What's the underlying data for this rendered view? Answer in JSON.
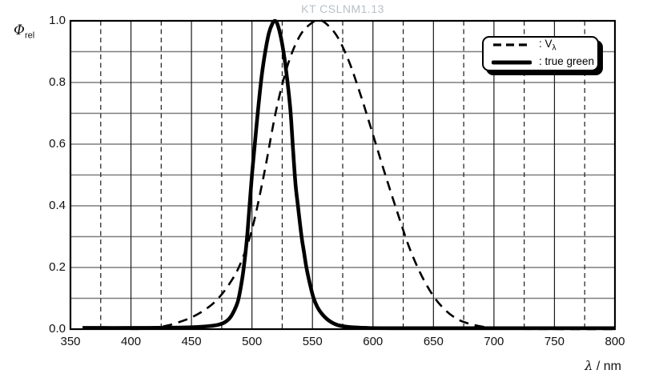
{
  "title": "KT CSLNM1.13",
  "axes": {
    "y_symbol": "Φ",
    "y_symbol_sub": "rel",
    "x_symbol": "λ",
    "x_unit": " / nm"
  },
  "legend": {
    "position": "top-right",
    "entries": [
      {
        "label_main": ": V",
        "label_sub": "λ",
        "line_style": "dashed"
      },
      {
        "label_main": ": true green",
        "label_sub": "",
        "line_style": "solid"
      }
    ]
  },
  "chart_data": {
    "type": "line",
    "title": "KT CSLNM1.13",
    "xlabel": "λ / nm",
    "ylabel": "Φrel",
    "xlim": [
      350,
      800
    ],
    "ylim": [
      0.0,
      1.0
    ],
    "grid": true,
    "x_ticks": [
      350,
      400,
      450,
      500,
      550,
      600,
      650,
      700,
      750,
      800
    ],
    "y_ticks": [
      "0.0",
      "0.2",
      "0.4",
      "0.6",
      "0.8",
      "1.0"
    ],
    "x_minor_gridlines": [
      375,
      425,
      475,
      525,
      575,
      625,
      675,
      725,
      775
    ],
    "y_minor_gridlines": [
      0.1,
      0.3,
      0.5,
      0.7,
      0.9
    ],
    "legend_position": "top-right",
    "series": [
      {
        "name": "Vλ",
        "line": "dashed",
        "points": [
          [
            400,
            0.0004
          ],
          [
            410,
            0.0012
          ],
          [
            420,
            0.004
          ],
          [
            430,
            0.0116
          ],
          [
            440,
            0.023
          ],
          [
            450,
            0.038
          ],
          [
            460,
            0.06
          ],
          [
            470,
            0.091
          ],
          [
            480,
            0.139
          ],
          [
            490,
            0.208
          ],
          [
            500,
            0.323
          ],
          [
            510,
            0.503
          ],
          [
            520,
            0.71
          ],
          [
            530,
            0.862
          ],
          [
            540,
            0.954
          ],
          [
            550,
            0.995
          ],
          [
            555,
            1.0
          ],
          [
            560,
            0.995
          ],
          [
            570,
            0.952
          ],
          [
            580,
            0.87
          ],
          [
            590,
            0.757
          ],
          [
            600,
            0.631
          ],
          [
            610,
            0.503
          ],
          [
            620,
            0.381
          ],
          [
            630,
            0.265
          ],
          [
            640,
            0.175
          ],
          [
            650,
            0.107
          ],
          [
            660,
            0.061
          ],
          [
            670,
            0.032
          ],
          [
            680,
            0.017
          ],
          [
            690,
            0.0082
          ],
          [
            700,
            0.0041
          ],
          [
            720,
            0.001
          ],
          [
            760,
            0.0002
          ],
          [
            800,
            0.0
          ]
        ]
      },
      {
        "name": "true green",
        "line": "solid",
        "points": [
          [
            360,
            0.004
          ],
          [
            400,
            0.004
          ],
          [
            440,
            0.005
          ],
          [
            455,
            0.007
          ],
          [
            465,
            0.01
          ],
          [
            472,
            0.014
          ],
          [
            477,
            0.021
          ],
          [
            481,
            0.033
          ],
          [
            484,
            0.05
          ],
          [
            487,
            0.075
          ],
          [
            489,
            0.1
          ],
          [
            492,
            0.165
          ],
          [
            494,
            0.225
          ],
          [
            496,
            0.3
          ],
          [
            498,
            0.4
          ],
          [
            500,
            0.5
          ],
          [
            502,
            0.585
          ],
          [
            505,
            0.71
          ],
          [
            508,
            0.82
          ],
          [
            511,
            0.9
          ],
          [
            514,
            0.96
          ],
          [
            517,
            0.992
          ],
          [
            519,
            1.0
          ],
          [
            521,
            0.99
          ],
          [
            524,
            0.945
          ],
          [
            527,
            0.875
          ],
          [
            530,
            0.78
          ],
          [
            532,
            0.7
          ],
          [
            534,
            0.58
          ],
          [
            536,
            0.47
          ],
          [
            538,
            0.4
          ],
          [
            541,
            0.3
          ],
          [
            543,
            0.25
          ],
          [
            545,
            0.2
          ],
          [
            548,
            0.145
          ],
          [
            551,
            0.1
          ],
          [
            555,
            0.065
          ],
          [
            560,
            0.04
          ],
          [
            565,
            0.024
          ],
          [
            571,
            0.013
          ],
          [
            580,
            0.007
          ],
          [
            595,
            0.004
          ],
          [
            620,
            0.003
          ],
          [
            700,
            0.003
          ],
          [
            800,
            0.003
          ]
        ]
      }
    ],
    "colors": {
      "curve": "#000000",
      "h_grid": "#7d7d7d",
      "v_grid": "#1a1a1a",
      "border": "#000000",
      "title": "#b9c0c7"
    }
  }
}
